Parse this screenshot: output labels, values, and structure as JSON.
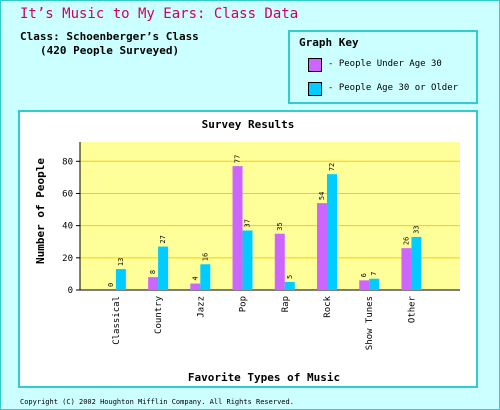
{
  "app": {
    "title": "It’s Music to My Ears: Class Data",
    "class_line": "Class:  Schoenberger’s Class",
    "survey_line": "(420 People Surveyed)",
    "copyright": "Copyright (C) 2002  Houghton Mifflin Company.  All Rights Reserved."
  },
  "key": {
    "title": "Graph Key",
    "items": [
      {
        "label": "- People Under Age 30",
        "color": "#cc66ff"
      },
      {
        "label": "- People Age 30 or Older",
        "color": "#00ccff"
      }
    ]
  },
  "chart_data": {
    "type": "bar",
    "title": "Survey Results",
    "xlabel": "Favorite Types of Music",
    "ylabel": "Number of People",
    "categories": [
      "Classical",
      "Country",
      "Jazz",
      "Pop",
      "Rap",
      "Rock",
      "Show Tunes",
      "Other"
    ],
    "series": [
      {
        "name": "People Under Age 30",
        "color": "#cc66ff",
        "values": [
          0,
          8,
          4,
          77,
          35,
          54,
          6,
          26
        ]
      },
      {
        "name": "People Age 30 or Older",
        "color": "#00ccff",
        "values": [
          13,
          27,
          16,
          37,
          5,
          72,
          7,
          33
        ]
      }
    ],
    "yticks": [
      0,
      20,
      40,
      60,
      80
    ],
    "ylim": [
      0,
      92
    ],
    "plot_background": "#ffff99",
    "grid": true
  }
}
